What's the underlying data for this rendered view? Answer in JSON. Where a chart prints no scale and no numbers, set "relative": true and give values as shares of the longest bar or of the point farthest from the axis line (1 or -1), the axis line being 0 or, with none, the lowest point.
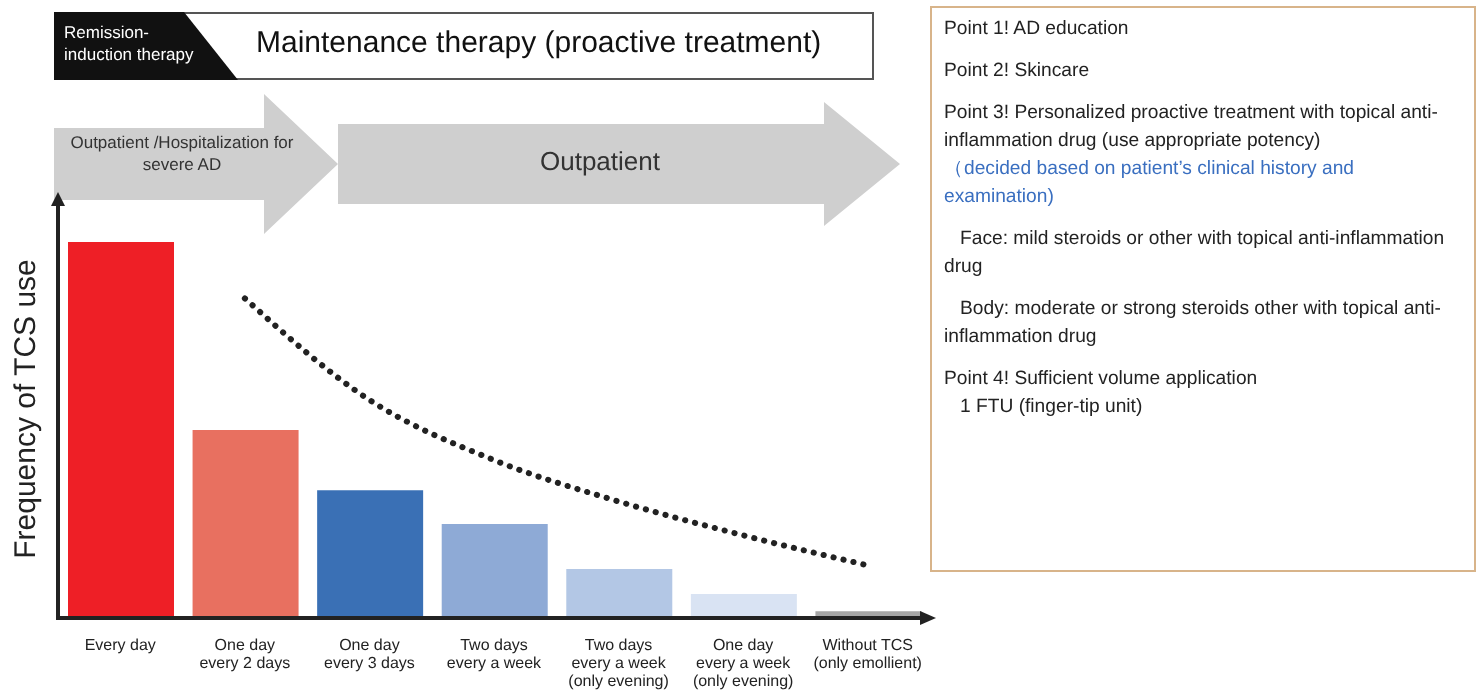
{
  "chart_data": {
    "type": "bar",
    "relative": true,
    "title": "Maintenance therapy (proactive treatment)",
    "ylabel": "Frequency of TCS use",
    "categories": [
      "Every day",
      "One day\nevery 2 days",
      "One day\nevery 3 days",
      "Two days\nevery a week",
      "Two days\nevery a week\n(only evening)",
      "One day\nevery a week\n(only evening)",
      "Without TCS\n(only emollient)"
    ],
    "values": [
      1,
      0.5,
      0.34,
      0.25,
      0.13,
      0.064,
      0.018
    ],
    "colors": [
      "#ee1f26",
      "#e87060",
      "#3a70b5",
      "#8eaad6",
      "#b3c7e5",
      "#d9e3f3",
      "#a6a6a6"
    ],
    "series": [
      {
        "type": "line",
        "color": "#222222",
        "line_style": "dotted",
        "marker": "none",
        "values": [
          null,
          0.85,
          0.58,
          0.42,
          0.31,
          0.22,
          0.14
        ]
      }
    ],
    "legend": false,
    "grid": false,
    "annotations": [
      "Remission-induction therapy",
      "Outpatient /Hospitalization for severe AD",
      "Outpatient",
      "Point 1!  AD education",
      "Point 2! Skincare",
      "Point 3! Personalized proactive treatment with topical anti-inflammation drug (use appropriate potency)",
      "（decided based on patient’s clinical history and examination)",
      "Face: mild steroids or other with topical anti-inflammation drug",
      "Body: moderate or strong steroids other with topical anti-inflammation drug",
      "Point 4!  Sufficient volume application",
      "1 FTU (finger-tip unit)"
    ]
  }
}
